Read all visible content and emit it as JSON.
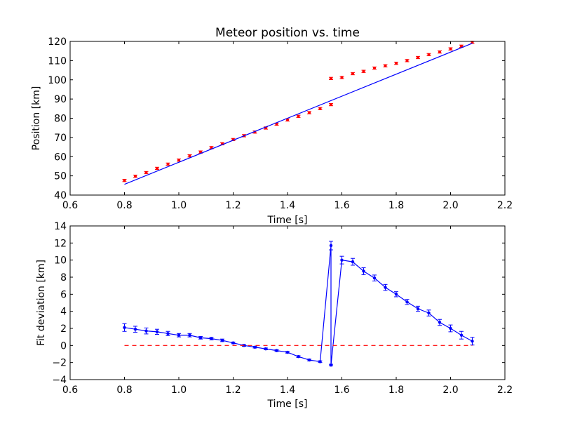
{
  "colors": {
    "points": "#ff0000",
    "fit": "#0000ff",
    "zero_line": "#ff0000",
    "axes": "#000000"
  },
  "chart_data": [
    {
      "type": "scatter",
      "title": "Meteor position vs. time",
      "xlabel": "Time [s]",
      "ylabel": "Position [km]",
      "xlim": [
        0.6,
        2.2
      ],
      "ylim": [
        40,
        120
      ],
      "xticks": [
        "0.6",
        "0.8",
        "1.0",
        "1.2",
        "1.4",
        "1.6",
        "1.8",
        "2.0",
        "2.2"
      ],
      "yticks": [
        "40",
        "50",
        "60",
        "70",
        "80",
        "90",
        "100",
        "110",
        "120"
      ],
      "grid": false,
      "series": [
        {
          "style": "points-with-errorbars",
          "x": [
            0.8,
            0.84,
            0.88,
            0.92,
            0.96,
            1.0,
            1.04,
            1.08,
            1.12,
            1.16,
            1.2,
            1.24,
            1.28,
            1.32,
            1.36,
            1.4,
            1.44,
            1.48,
            1.52,
            1.56,
            1.56,
            1.6,
            1.64,
            1.68,
            1.72,
            1.76,
            1.8,
            1.84,
            1.88,
            1.92,
            1.96,
            2.0,
            2.04,
            2.08
          ],
          "y": [
            47.6,
            49.8,
            51.7,
            53.9,
            56.1,
            58.2,
            60.4,
            62.4,
            64.7,
            66.7,
            68.9,
            70.9,
            72.8,
            74.9,
            76.9,
            79.1,
            81.0,
            82.9,
            85.0,
            87.1,
            100.7,
            101.2,
            103.2,
            104.4,
            106.1,
            107.3,
            108.6,
            110.0,
            111.6,
            113.1,
            114.5,
            116.1,
            117.5,
            119.5
          ],
          "yerr": 0.6
        },
        {
          "style": "line",
          "x": [
            0.8,
            2.08
          ],
          "y": [
            45.6,
            119.0
          ]
        }
      ]
    },
    {
      "type": "line",
      "title": "",
      "xlabel": "Time [s]",
      "ylabel": "Fit deviation [km]",
      "xlim": [
        0.6,
        2.2
      ],
      "ylim": [
        -4,
        14
      ],
      "xticks": [
        "0.6",
        "0.8",
        "1.0",
        "1.2",
        "1.4",
        "1.6",
        "1.8",
        "2.0",
        "2.2"
      ],
      "yticks": [
        "−4",
        "−2",
        "0",
        "2",
        "4",
        "6",
        "8",
        "10",
        "12",
        "14"
      ],
      "grid": false,
      "series": [
        {
          "style": "line-markers-errorbars",
          "x": [
            0.8,
            0.84,
            0.88,
            0.92,
            0.96,
            1.0,
            1.04,
            1.08,
            1.12,
            1.16,
            1.2,
            1.24,
            1.28,
            1.32,
            1.36,
            1.4,
            1.44,
            1.48,
            1.52,
            1.56,
            1.56,
            1.6,
            1.64,
            1.68,
            1.72,
            1.76,
            1.8,
            1.84,
            1.88,
            1.92,
            1.96,
            2.0,
            2.04,
            2.08
          ],
          "y": [
            2.1,
            1.9,
            1.7,
            1.6,
            1.4,
            1.2,
            1.2,
            0.9,
            0.8,
            0.6,
            0.3,
            0.0,
            -0.2,
            -0.4,
            -0.6,
            -0.8,
            -1.3,
            -1.7,
            -1.9,
            11.7,
            -2.3,
            10.0,
            9.8,
            8.7,
            7.9,
            6.8,
            6.0,
            5.1,
            4.3,
            3.8,
            2.7,
            2.0,
            1.2,
            0.5
          ],
          "yerr": [
            0.45,
            0.35,
            0.35,
            0.3,
            0.25,
            0.2,
            0.2,
            0.15,
            0.15,
            0.15,
            0.1,
            0.1,
            0.1,
            0.1,
            0.1,
            0.1,
            0.1,
            0.1,
            0.1,
            0.5,
            0.1,
            0.45,
            0.4,
            0.4,
            0.35,
            0.35,
            0.3,
            0.3,
            0.3,
            0.35,
            0.35,
            0.4,
            0.45,
            0.45
          ]
        },
        {
          "style": "dashed-line",
          "x": [
            0.8,
            2.08
          ],
          "y": [
            0,
            0
          ]
        }
      ]
    }
  ]
}
